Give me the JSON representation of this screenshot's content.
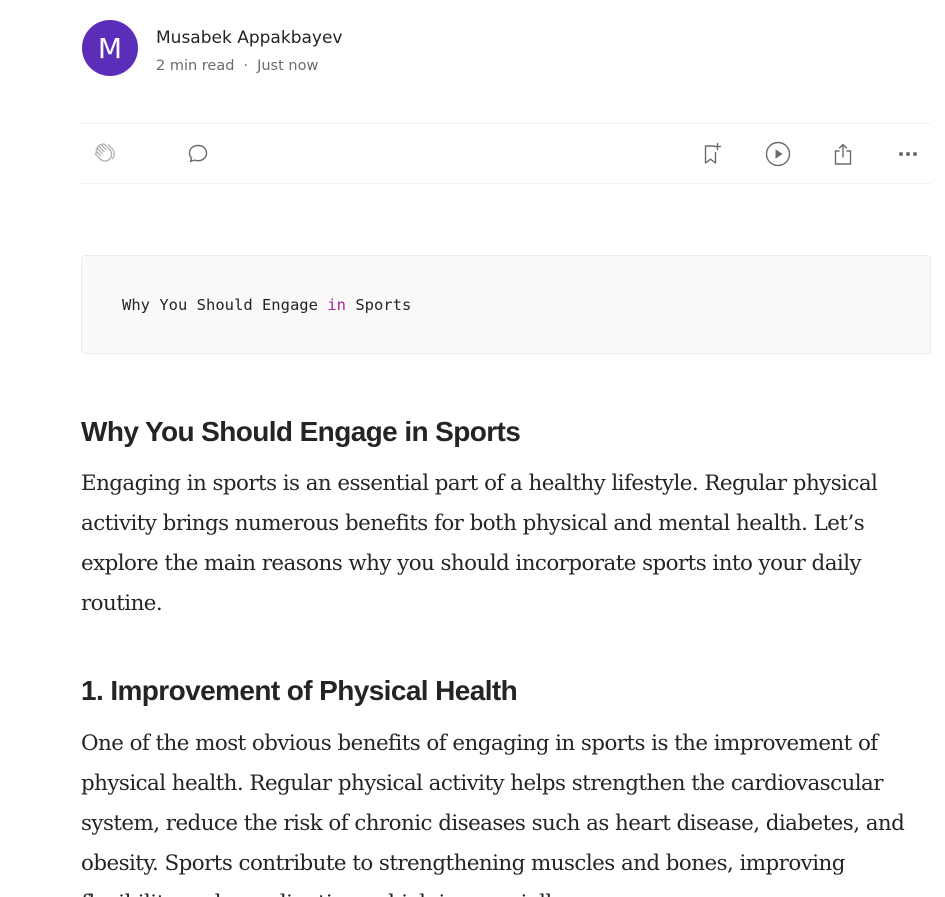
{
  "author": {
    "avatar_letter": "M",
    "avatar_color": "#5b2db8",
    "name": "Musabek Appakbayev",
    "read_time": "2 min read",
    "separator": "·",
    "published": "Just now"
  },
  "actions": {
    "clap_icon": "clap-icon",
    "comment_icon": "comment-icon",
    "save_icon": "bookmark-add-icon",
    "listen_icon": "play-icon",
    "share_icon": "share-icon",
    "more_icon": "more-icon"
  },
  "code_block": {
    "before_keyword": "Why You Should Engage ",
    "keyword": "in",
    "after_keyword": " Sports",
    "keyword_color": "#a626a4"
  },
  "article": {
    "heading1": "Why You Should Engage in Sports",
    "paragraph1": "Engaging in sports is an essential part of a healthy lifestyle. Regular physical activity brings numerous benefits for both physical and mental health. Let’s explore the main reasons why you should incorporate sports into your daily routine.",
    "heading2": "1. Improvement of Physical Health",
    "paragraph2": "One of the most obvious benefits of engaging in sports is the improvement of physical health. Regular physical activity helps strengthen the cardiovascular system, reduce the risk of chronic diseases such as heart disease, diabetes, and obesity. Sports contribute to strengthening muscles and bones, improving flexibility and coordination, which is especially"
  }
}
